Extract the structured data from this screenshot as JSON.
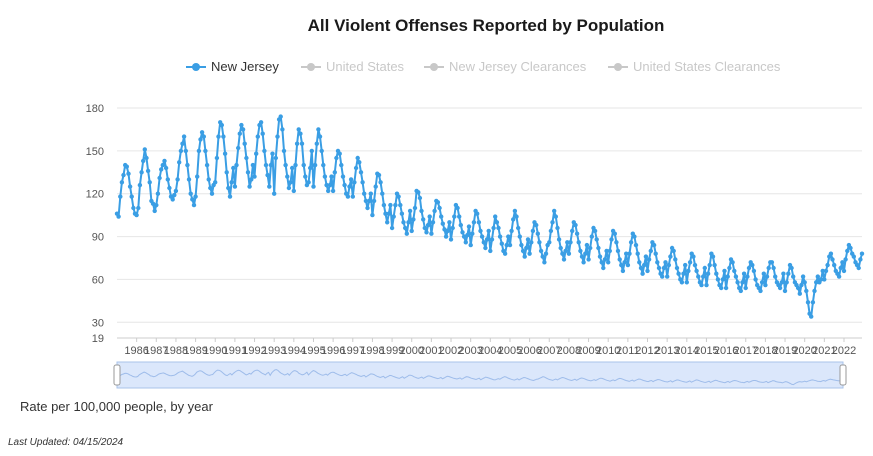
{
  "colors": {
    "active": "#3a9ee4",
    "inactive": "#c8c8c8",
    "grid": "#e6e6e6",
    "zoom_fill": "#dbe7fb",
    "zoom_border": "#a9c3ea"
  },
  "legend": {
    "items": [
      {
        "label": "New Jersey",
        "active": true
      },
      {
        "label": "United States",
        "active": false
      },
      {
        "label": "New Jersey Clearances",
        "active": false
      },
      {
        "label": "United States Clearances",
        "active": false
      }
    ]
  },
  "caption": "Rate per 100,000 people, by year",
  "last_updated": "Last Updated: 04/15/2024",
  "chart_data": {
    "type": "line",
    "title": "All Violent Offenses Reported by Population",
    "xlabel": "",
    "ylabel": "Rate per 100,000 people, by year",
    "yticks": [
      19,
      30,
      60,
      90,
      120,
      150,
      180
    ],
    "ylim": [
      19,
      180
    ],
    "x_ticks": [
      "1986",
      "1987",
      "1988",
      "1989",
      "1990",
      "1991",
      "1992",
      "1993",
      "1994",
      "1995",
      "1996",
      "1997",
      "1998",
      "1999",
      "2000",
      "2001",
      "2002",
      "2003",
      "2004",
      "2005",
      "2006",
      "2007",
      "2008",
      "2009",
      "2010",
      "2011",
      "2012",
      "2013",
      "2014",
      "2015",
      "2016",
      "2017",
      "2018",
      "2019",
      "2020",
      "2021",
      "2022"
    ],
    "x_label_rows": [
      "1986 1987 1988 1989 1990 1991 1992 1993 1994 1995 1996 1997 1998 1999 2000 2001 2002 2003 2004 2005 2006 2007 2008 2009 2010 2011 2012 2013 2014 2015 2016 2017 2018 2019 2020 2021 2022"
    ],
    "grid": true,
    "start_year": 1985,
    "series": [
      {
        "name": "New Jersey",
        "values_per_year": {
          "1985": [
            106,
            104,
            118,
            128,
            133,
            140,
            139,
            134,
            125,
            118,
            110,
            106
          ],
          "1986": [
            105,
            110,
            126,
            135,
            143,
            151,
            145,
            136,
            128,
            115,
            113,
            108
          ],
          "1987": [
            112,
            120,
            131,
            137,
            140,
            143,
            138,
            130,
            124,
            118,
            116,
            119
          ],
          "1988": [
            122,
            130,
            142,
            150,
            155,
            160,
            150,
            140,
            130,
            120,
            116,
            112
          ],
          "1989": [
            118,
            132,
            150,
            158,
            163,
            160,
            150,
            140,
            130,
            124,
            120,
            126
          ],
          "1990": [
            128,
            145,
            160,
            170,
            168,
            160,
            148,
            135,
            124,
            118,
            128,
            138
          ],
          "1991": [
            125,
            140,
            152,
            162,
            168,
            165,
            155,
            145,
            135,
            125,
            130,
            140
          ],
          "1992": [
            132,
            148,
            160,
            168,
            170,
            162,
            150,
            140,
            133,
            125,
            140,
            148
          ],
          "1993": [
            120,
            145,
            160,
            172,
            174,
            165,
            150,
            140,
            132,
            124,
            128,
            138
          ],
          "1994": [
            122,
            140,
            155,
            165,
            162,
            155,
            140,
            132,
            126,
            128,
            138,
            150
          ],
          "1995": [
            125,
            140,
            155,
            165,
            160,
            150,
            140,
            132,
            126,
            122,
            126,
            132
          ],
          "1996": [
            122,
            135,
            145,
            150,
            148,
            140,
            132,
            126,
            120,
            118,
            125,
            130
          ],
          "1997": [
            118,
            128,
            138,
            145,
            142,
            135,
            128,
            120,
            115,
            110,
            115,
            120
          ],
          "1998": [
            105,
            115,
            125,
            134,
            133,
            128,
            120,
            112,
            106,
            100,
            106,
            112
          ],
          "1999": [
            96,
            104,
            112,
            120,
            118,
            112,
            106,
            100,
            96,
            92,
            100,
            108
          ],
          "2000": [
            94,
            102,
            110,
            122,
            121,
            117,
            108,
            102,
            96,
            93,
            98,
            104
          ],
          "2001": [
            92,
            100,
            108,
            115,
            114,
            110,
            104,
            99,
            95,
            90,
            94,
            100
          ],
          "2002": [
            88,
            96,
            104,
            112,
            110,
            104,
            98,
            93,
            90,
            86,
            91,
            97
          ],
          "2003": [
            84,
            92,
            100,
            108,
            106,
            100,
            94,
            90,
            86,
            82,
            88,
            94
          ],
          "2004": [
            80,
            88,
            96,
            104,
            100,
            96,
            90,
            85,
            80,
            78,
            84,
            90
          ],
          "2005": [
            84,
            94,
            102,
            108,
            104,
            96,
            90,
            84,
            80,
            76,
            82,
            88
          ],
          "2006": [
            78,
            86,
            94,
            100,
            98,
            92,
            86,
            80,
            76,
            72,
            78,
            84
          ],
          "2007": [
            86,
            94,
            100,
            108,
            104,
            96,
            88,
            82,
            78,
            74,
            80,
            86
          ],
          "2008": [
            78,
            86,
            94,
            100,
            98,
            92,
            86,
            80,
            76,
            72,
            78,
            84
          ],
          "2009": [
            74,
            82,
            90,
            96,
            94,
            88,
            82,
            76,
            72,
            68,
            74,
            80
          ],
          "2010": [
            72,
            80,
            88,
            94,
            92,
            86,
            80,
            74,
            70,
            66,
            72,
            78
          ],
          "2011": [
            70,
            78,
            86,
            92,
            90,
            84,
            78,
            72,
            68,
            64,
            70,
            76
          ],
          "2012": [
            66,
            74,
            80,
            86,
            84,
            78,
            72,
            68,
            64,
            62,
            68,
            72
          ],
          "2013": [
            62,
            70,
            76,
            82,
            80,
            74,
            68,
            64,
            60,
            58,
            64,
            70
          ],
          "2014": [
            58,
            66,
            72,
            78,
            76,
            70,
            66,
            62,
            58,
            56,
            62,
            68
          ],
          "2015": [
            56,
            64,
            70,
            78,
            76,
            70,
            64,
            60,
            56,
            54,
            60,
            66
          ],
          "2016": [
            54,
            62,
            68,
            74,
            72,
            66,
            62,
            58,
            54,
            52,
            58,
            64
          ],
          "2017": [
            54,
            62,
            68,
            72,
            70,
            66,
            60,
            56,
            54,
            52,
            58,
            64
          ],
          "2018": [
            56,
            62,
            68,
            72,
            72,
            68,
            62,
            58,
            56,
            54,
            58,
            64
          ],
          "2019": [
            52,
            58,
            64,
            70,
            68,
            62,
            58,
            56,
            54,
            50,
            56,
            62
          ],
          "2020": [
            58,
            52,
            44,
            36,
            34,
            44,
            52,
            58,
            62,
            58,
            60,
            66
          ],
          "2021": [
            60,
            66,
            70,
            76,
            78,
            74,
            70,
            66,
            64,
            62,
            68,
            72
          ],
          "2022": [
            66,
            74,
            80,
            84,
            82,
            78,
            76,
            72,
            70,
            68,
            74,
            78
          ]
        }
      }
    ]
  }
}
